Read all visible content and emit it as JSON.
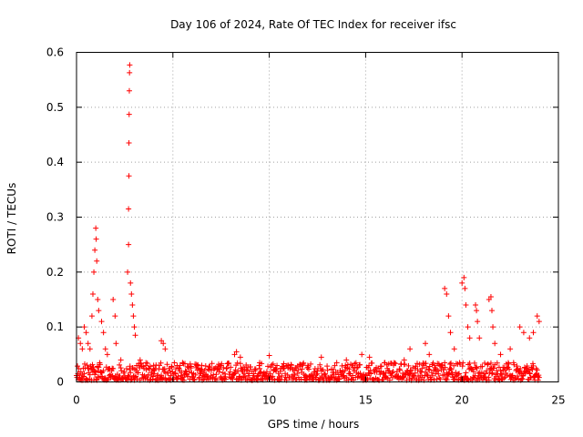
{
  "chart_data": {
    "type": "scatter",
    "title": "Day 106 of 2024, Rate Of TEC Index for receiver ifsc",
    "xlabel": "GPS time / hours",
    "ylabel": "ROTI / TECUs",
    "xlim": [
      0,
      25
    ],
    "ylim": [
      0,
      0.6
    ],
    "x_ticks": [
      0,
      5,
      10,
      15,
      20,
      25
    ],
    "y_ticks": [
      0,
      0.1,
      0.2,
      0.3,
      0.4,
      0.5,
      0.6
    ],
    "x_tick_labels": [
      "0",
      "5",
      "10",
      "15",
      "20",
      "25"
    ],
    "y_tick_labels": [
      "0",
      "0.1",
      "0.2",
      "0.3",
      "0.4",
      "0.5",
      "0.6"
    ],
    "grid": true,
    "marker": "+",
    "marker_color": "#ff0000",
    "series": [
      {
        "name": "ROTI",
        "background_band": {
          "x_range": [
            0,
            24
          ],
          "y_range": [
            0.003,
            0.035
          ]
        },
        "points": [
          [
            0.1,
            0.08
          ],
          [
            0.2,
            0.07
          ],
          [
            0.3,
            0.06
          ],
          [
            0.4,
            0.1
          ],
          [
            0.5,
            0.09
          ],
          [
            0.6,
            0.07
          ],
          [
            0.7,
            0.06
          ],
          [
            0.8,
            0.12
          ],
          [
            0.85,
            0.16
          ],
          [
            0.9,
            0.2
          ],
          [
            0.95,
            0.24
          ],
          [
            1.0,
            0.28
          ],
          [
            1.02,
            0.26
          ],
          [
            1.05,
            0.22
          ],
          [
            1.1,
            0.15
          ],
          [
            1.15,
            0.13
          ],
          [
            1.3,
            0.11
          ],
          [
            1.4,
            0.09
          ],
          [
            1.5,
            0.06
          ],
          [
            1.6,
            0.05
          ],
          [
            1.9,
            0.15
          ],
          [
            2.0,
            0.12
          ],
          [
            2.05,
            0.07
          ],
          [
            2.3,
            0.04
          ],
          [
            2.65,
            0.2
          ],
          [
            2.7,
            0.25
          ],
          [
            2.7,
            0.315
          ],
          [
            2.72,
            0.375
          ],
          [
            2.72,
            0.435
          ],
          [
            2.73,
            0.487
          ],
          [
            2.74,
            0.53
          ],
          [
            2.75,
            0.563
          ],
          [
            2.76,
            0.577
          ],
          [
            2.8,
            0.18
          ],
          [
            2.85,
            0.16
          ],
          [
            2.9,
            0.14
          ],
          [
            2.95,
            0.12
          ],
          [
            3.0,
            0.1
          ],
          [
            3.05,
            0.085
          ],
          [
            3.3,
            0.04
          ],
          [
            3.6,
            0.03
          ],
          [
            4.0,
            0.03
          ],
          [
            4.4,
            0.075
          ],
          [
            4.5,
            0.07
          ],
          [
            4.6,
            0.06
          ],
          [
            5.5,
            0.035
          ],
          [
            6.5,
            0.03
          ],
          [
            7.5,
            0.03
          ],
          [
            8.2,
            0.05
          ],
          [
            8.3,
            0.055
          ],
          [
            8.5,
            0.045
          ],
          [
            9.5,
            0.035
          ],
          [
            10.0,
            0.048
          ],
          [
            11.0,
            0.03
          ],
          [
            12.0,
            0.03
          ],
          [
            12.7,
            0.045
          ],
          [
            13.5,
            0.035
          ],
          [
            14.0,
            0.04
          ],
          [
            14.8,
            0.05
          ],
          [
            15.2,
            0.045
          ],
          [
            16.0,
            0.035
          ],
          [
            17.0,
            0.04
          ],
          [
            17.3,
            0.06
          ],
          [
            18.1,
            0.07
          ],
          [
            18.3,
            0.05
          ],
          [
            19.1,
            0.17
          ],
          [
            19.2,
            0.16
          ],
          [
            19.3,
            0.12
          ],
          [
            19.4,
            0.09
          ],
          [
            19.6,
            0.06
          ],
          [
            20.0,
            0.18
          ],
          [
            20.1,
            0.19
          ],
          [
            20.15,
            0.17
          ],
          [
            20.2,
            0.14
          ],
          [
            20.3,
            0.1
          ],
          [
            20.4,
            0.08
          ],
          [
            20.7,
            0.14
          ],
          [
            20.75,
            0.13
          ],
          [
            20.8,
            0.11
          ],
          [
            20.9,
            0.08
          ],
          [
            21.4,
            0.15
          ],
          [
            21.5,
            0.155
          ],
          [
            21.55,
            0.13
          ],
          [
            21.6,
            0.1
          ],
          [
            21.7,
            0.07
          ],
          [
            22.0,
            0.05
          ],
          [
            22.5,
            0.06
          ],
          [
            23.0,
            0.1
          ],
          [
            23.2,
            0.09
          ],
          [
            23.5,
            0.08
          ],
          [
            23.7,
            0.09
          ],
          [
            23.9,
            0.12
          ],
          [
            24.0,
            0.11
          ]
        ]
      }
    ]
  }
}
